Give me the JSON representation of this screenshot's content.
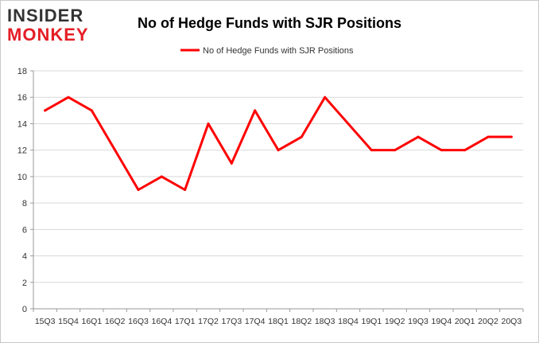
{
  "logo": {
    "line1": "INSIDER",
    "line2": "MONKEY"
  },
  "chart_data": {
    "type": "line",
    "title": "No of Hedge Funds with SJR Positions",
    "xlabel": "",
    "ylabel": "",
    "categories": [
      "15Q3",
      "15Q4",
      "16Q1",
      "16Q2",
      "16Q3",
      "16Q4",
      "17Q1",
      "17Q2",
      "17Q3",
      "17Q4",
      "18Q1",
      "18Q2",
      "18Q3",
      "18Q4",
      "19Q1",
      "19Q2",
      "19Q3",
      "19Q4",
      "20Q1",
      "20Q2",
      "20Q3"
    ],
    "tick_labels": [
      "15Q3",
      "15Q4",
      "16Q1",
      "16Q2",
      "16Q3",
      "16Q4",
      "17Q1",
      "17Q2",
      "17Q3",
      "17Q4",
      "18Q1",
      "18Q2",
      "18Q3",
      "18Q4",
      "19Q1",
      "19Q2",
      "19Q3",
      "19Q4",
      "20Q1",
      "20Q2",
      "20Q3"
    ],
    "series": [
      {
        "name": "No of Hedge Funds with SJR Positions",
        "color": "#ff0000",
        "values": [
          15,
          16,
          15,
          12,
          9,
          10,
          9,
          14,
          11,
          15,
          12,
          13,
          16,
          14,
          12,
          12,
          13,
          12,
          12,
          13,
          13
        ]
      }
    ],
    "ylim": [
      0,
      18
    ],
    "yticks": [
      0,
      2,
      4,
      6,
      8,
      10,
      12,
      14,
      16,
      18
    ],
    "grid": true,
    "legend": "top-center"
  }
}
